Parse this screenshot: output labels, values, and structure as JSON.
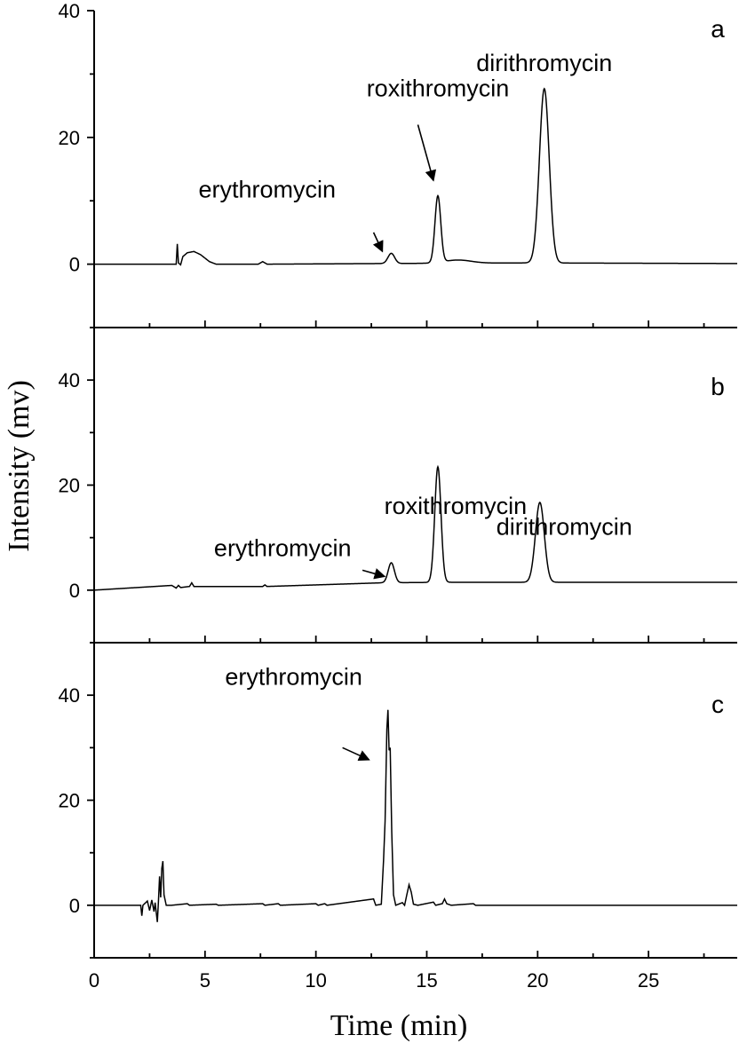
{
  "figure": {
    "ylabel": "Intensity (mv)",
    "xlabel": "Time (min)",
    "x_ticks": [
      "0",
      "5",
      "10",
      "15",
      "20",
      "25"
    ]
  },
  "chart_data": [
    {
      "type": "line",
      "panel": "a",
      "xlim": [
        0,
        29
      ],
      "ylim": [
        -10,
        40
      ],
      "yticks": [
        0,
        20,
        40
      ],
      "ytick_labels": [
        "0",
        "20",
        "40"
      ],
      "xticks": [
        0,
        5,
        10,
        15,
        20,
        25
      ],
      "grid": false,
      "baseline": [
        [
          0,
          0
        ],
        [
          3.7,
          0
        ],
        [
          3.75,
          3.2
        ],
        [
          3.8,
          0.2
        ],
        [
          3.9,
          -0.1
        ],
        [
          4.0,
          1.2
        ],
        [
          4.2,
          1.8
        ],
        [
          4.5,
          2.0
        ],
        [
          4.8,
          1.5
        ],
        [
          5.2,
          0.4
        ],
        [
          5.5,
          0.0
        ],
        [
          7.4,
          0.0
        ],
        [
          7.6,
          0.4
        ],
        [
          7.8,
          0.0
        ],
        [
          13.0,
          0.1
        ],
        [
          19.5,
          0.2
        ],
        [
          29,
          0.1
        ]
      ],
      "peaks": [
        {
          "name": "erythromycin",
          "t": 13.4,
          "h": 1.6,
          "w": 0.15
        },
        {
          "name": "roxithromycin",
          "t": 15.5,
          "h": 10.5,
          "w": 0.13
        },
        {
          "name": "roxithromycin-tail",
          "t": 16.4,
          "h": 0.5,
          "w": 0.6
        },
        {
          "name": "dirithromycin",
          "t": 20.3,
          "h": 27.5,
          "w": 0.22
        }
      ],
      "annotations": [
        {
          "text": "erythromycin",
          "x": 7.8,
          "y": 10.5
        },
        {
          "text": "roxithromycin",
          "x": 15.5,
          "y": 26.5
        },
        {
          "text": "dirithromycin",
          "x": 20.3,
          "y": 30.5
        }
      ],
      "arrows": [
        {
          "from": [
            12.6,
            5.0
          ],
          "to": [
            13.0,
            2.0
          ]
        },
        {
          "from": [
            14.6,
            22.0
          ],
          "to": [
            15.3,
            13.2
          ]
        }
      ]
    },
    {
      "type": "line",
      "panel": "b",
      "xlim": [
        0,
        29
      ],
      "ylim": [
        -10,
        50
      ],
      "yticks": [
        0,
        20,
        40
      ],
      "ytick_labels": [
        "0",
        "20",
        "40"
      ],
      "xticks": [
        0,
        5,
        10,
        15,
        20,
        25
      ],
      "grid": false,
      "baseline": [
        [
          0,
          0
        ],
        [
          3.5,
          0.9
        ],
        [
          3.7,
          0.4
        ],
        [
          3.8,
          0.9
        ],
        [
          3.9,
          0.5
        ],
        [
          4.3,
          0.7
        ],
        [
          4.4,
          1.4
        ],
        [
          4.5,
          0.7
        ],
        [
          7.6,
          0.7
        ],
        [
          7.7,
          1.0
        ],
        [
          7.8,
          0.7
        ],
        [
          13.0,
          1.4
        ],
        [
          16.0,
          1.5
        ],
        [
          29,
          1.5
        ]
      ],
      "peaks": [
        {
          "name": "erythromycin",
          "t": 13.4,
          "h": 3.8,
          "w": 0.14
        },
        {
          "name": "roxithromycin",
          "t": 15.5,
          "h": 22.0,
          "w": 0.14
        },
        {
          "name": "dirithromycin",
          "t": 20.1,
          "h": 15.2,
          "w": 0.2
        }
      ],
      "annotations": [
        {
          "text": "erythromycin",
          "x": 8.5,
          "y": 6.5
        },
        {
          "text": "roxithromycin",
          "x": 16.3,
          "y": 14.5
        },
        {
          "text": "dirithromycin",
          "x": 21.2,
          "y": 10.5
        }
      ],
      "arrows": [
        {
          "from": [
            12.1,
            3.8
          ],
          "to": [
            13.1,
            2.6
          ]
        }
      ]
    },
    {
      "type": "line",
      "panel": "c",
      "xlim": [
        0,
        29
      ],
      "ylim": [
        -10,
        50
      ],
      "yticks": [
        0,
        20,
        40
      ],
      "ytick_labels": [
        "0",
        "20",
        "40"
      ],
      "xticks": [
        0,
        5,
        10,
        15,
        20,
        25
      ],
      "grid": false,
      "baseline": [
        [
          0,
          0
        ],
        [
          2.1,
          0
        ],
        [
          2.15,
          -2.0
        ],
        [
          2.2,
          0
        ],
        [
          2.4,
          0.8
        ],
        [
          2.5,
          -1.0
        ],
        [
          2.6,
          1.0
        ],
        [
          2.7,
          -1.2
        ],
        [
          2.75,
          0.5
        ],
        [
          2.85,
          -3.2
        ],
        [
          2.9,
          0.8
        ],
        [
          2.95,
          5.5
        ],
        [
          3.0,
          1.5
        ],
        [
          3.05,
          7.0
        ],
        [
          3.1,
          8.4
        ],
        [
          3.15,
          2.0
        ],
        [
          3.25,
          0.0
        ],
        [
          3.5,
          0.0
        ],
        [
          4.2,
          0.3
        ],
        [
          4.3,
          0.0
        ],
        [
          5.5,
          0.2
        ],
        [
          5.6,
          0.0
        ],
        [
          7.6,
          0.3
        ],
        [
          7.7,
          0.0
        ],
        [
          8.3,
          0.3
        ],
        [
          8.4,
          0.0
        ],
        [
          10.0,
          0.3
        ],
        [
          10.1,
          0.0
        ],
        [
          10.4,
          0.3
        ],
        [
          10.5,
          0.0
        ],
        [
          12.6,
          1.2
        ],
        [
          12.7,
          0.0
        ],
        [
          12.95,
          0.2
        ],
        [
          13.05,
          8.5
        ],
        [
          13.12,
          16.0
        ],
        [
          13.2,
          33.5
        ],
        [
          13.25,
          37.2
        ],
        [
          13.3,
          29.5
        ],
        [
          13.35,
          30.0
        ],
        [
          13.42,
          14.0
        ],
        [
          13.5,
          2.0
        ],
        [
          13.6,
          0.0
        ],
        [
          13.9,
          0.5
        ],
        [
          14.0,
          0.0
        ],
        [
          14.1,
          2.0
        ],
        [
          14.2,
          3.9
        ],
        [
          14.3,
          2.5
        ],
        [
          14.4,
          0.2
        ],
        [
          14.6,
          0.0
        ],
        [
          15.3,
          0.6
        ],
        [
          15.4,
          0.0
        ],
        [
          15.7,
          0.3
        ],
        [
          15.8,
          1.2
        ],
        [
          15.9,
          0.3
        ],
        [
          16.1,
          0.0
        ],
        [
          17.1,
          0.3
        ],
        [
          17.2,
          0.0
        ],
        [
          29,
          0.0
        ]
      ],
      "peaks": [],
      "annotations": [
        {
          "text": "erythromycin",
          "x": 9.0,
          "y": 42.0
        }
      ],
      "arrows": [
        {
          "from": [
            11.2,
            30.0
          ],
          "to": [
            12.4,
            27.7
          ]
        }
      ]
    }
  ],
  "panel_labels": [
    "a",
    "b",
    "c"
  ]
}
